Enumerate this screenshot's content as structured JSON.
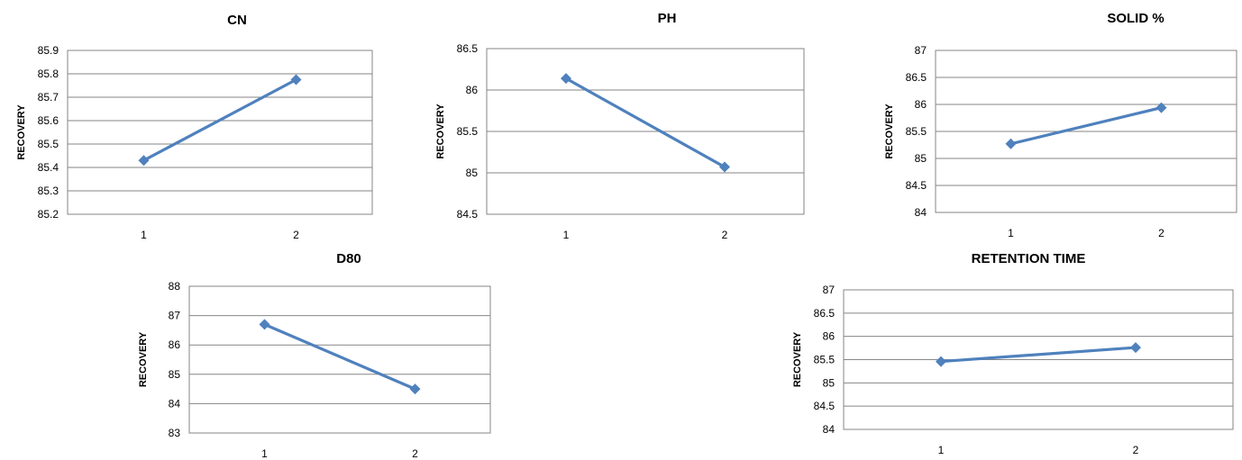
{
  "colors": {
    "series": "#4f81bd",
    "grid": "#868686",
    "frame": "#868686"
  },
  "chart_data": [
    {
      "type": "line",
      "title": "CN",
      "xlabel": "",
      "ylabel": "RECOVERY",
      "categories": [
        "1",
        "2"
      ],
      "values": [
        85.43,
        85.775
      ],
      "ylim": [
        85.2,
        85.9
      ],
      "ytick_step": 0.1,
      "yticks": [
        "85.2",
        "85.3",
        "85.4",
        "85.5",
        "85.6",
        "85.7",
        "85.8",
        "85.9"
      ],
      "grid": true,
      "marker": "diamond"
    },
    {
      "type": "line",
      "title": "PH",
      "xlabel": "",
      "ylabel": "RECOVERY",
      "categories": [
        "1",
        "2"
      ],
      "values": [
        86.14,
        85.07
      ],
      "ylim": [
        84.5,
        86.5
      ],
      "ytick_step": 0.5,
      "yticks": [
        "84.5",
        "85",
        "85.5",
        "86",
        "86.5"
      ],
      "grid": true,
      "marker": "diamond"
    },
    {
      "type": "line",
      "title": "SOLID %",
      "xlabel": "",
      "ylabel": "RECOVERY",
      "categories": [
        "1",
        "2"
      ],
      "values": [
        85.27,
        85.94
      ],
      "ylim": [
        84,
        87
      ],
      "ytick_step": 0.5,
      "yticks": [
        "84",
        "84.5",
        "85",
        "85.5",
        "86",
        "86.5",
        "87"
      ],
      "grid": true,
      "marker": "diamond"
    },
    {
      "type": "line",
      "title": "D80",
      "xlabel": "",
      "ylabel": "RECOVERY",
      "categories": [
        "1",
        "2"
      ],
      "values": [
        86.7,
        84.5
      ],
      "ylim": [
        83,
        88
      ],
      "ytick_step": 1,
      "yticks": [
        "83",
        "84",
        "85",
        "86",
        "87",
        "88"
      ],
      "grid": true,
      "marker": "diamond"
    },
    {
      "type": "line",
      "title": "RETENTION TIME",
      "xlabel": "",
      "ylabel": "RECOVERY",
      "categories": [
        "1",
        "2"
      ],
      "values": [
        85.46,
        85.76
      ],
      "ylim": [
        84,
        87
      ],
      "ytick_step": 0.5,
      "yticks": [
        "84",
        "84.5",
        "85",
        "85.5",
        "86",
        "86.5",
        "87"
      ],
      "grid": true,
      "marker": "diamond"
    }
  ]
}
